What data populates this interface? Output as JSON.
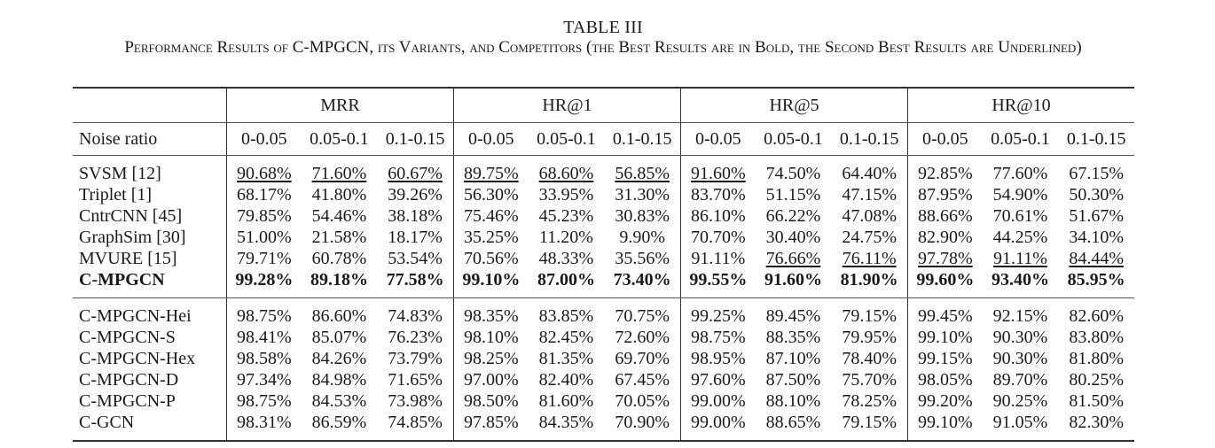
{
  "caption": {
    "label": "TABLE III",
    "title": "Performance Results of C-MPGCN, its Variants, and Competitors (the Best Results are in Bold, the Second Best Results are Underlined)"
  },
  "table": {
    "groups": [
      "MRR",
      "HR@1",
      "HR@5",
      "HR@10"
    ],
    "noise_header": "Noise ratio",
    "noise_ratios": [
      "0-0.05",
      "0.05-0.1",
      "0.1-0.15"
    ],
    "sections": [
      {
        "rows": [
          {
            "name": "SVSM [12]",
            "values": [
              "90.68%",
              "71.60%",
              "60.67%",
              "89.75%",
              "68.60%",
              "56.85%",
              "91.60%",
              "74.50%",
              "64.40%",
              "92.85%",
              "77.60%",
              "67.15%"
            ],
            "underline": [
              0,
              1,
              2,
              3,
              4,
              5,
              6
            ]
          },
          {
            "name": "Triplet [1]",
            "values": [
              "68.17%",
              "41.80%",
              "39.26%",
              "56.30%",
              "33.95%",
              "31.30%",
              "83.70%",
              "51.15%",
              "47.15%",
              "87.95%",
              "54.90%",
              "50.30%"
            ]
          },
          {
            "name": "CntrCNN [45]",
            "values": [
              "79.85%",
              "54.46%",
              "38.18%",
              "75.46%",
              "45.23%",
              "30.83%",
              "86.10%",
              "66.22%",
              "47.08%",
              "88.66%",
              "70.61%",
              "51.67%"
            ]
          },
          {
            "name": "GraphSim [30]",
            "values": [
              "51.00%",
              "21.58%",
              "18.17%",
              "35.25%",
              "11.20%",
              "9.90%",
              "70.70%",
              "30.40%",
              "24.75%",
              "82.90%",
              "44.25%",
              "34.10%"
            ]
          },
          {
            "name": "MVURE [15]",
            "values": [
              "79.71%",
              "60.78%",
              "53.54%",
              "70.56%",
              "48.33%",
              "35.56%",
              "91.11%",
              "76.66%",
              "76.11%",
              "97.78%",
              "91.11%",
              "84.44%"
            ],
            "underline": [
              7,
              8,
              9,
              10,
              11
            ]
          },
          {
            "name": "C-MPGCN",
            "values": [
              "99.28%",
              "89.18%",
              "77.58%",
              "99.10%",
              "87.00%",
              "73.40%",
              "99.55%",
              "91.60%",
              "81.90%",
              "99.60%",
              "93.40%",
              "85.95%"
            ],
            "bold": true
          }
        ]
      },
      {
        "rows": [
          {
            "name": "C-MPGCN-Hei",
            "values": [
              "98.75%",
              "86.60%",
              "74.83%",
              "98.35%",
              "83.85%",
              "70.75%",
              "99.25%",
              "89.45%",
              "79.15%",
              "99.45%",
              "92.15%",
              "82.60%"
            ]
          },
          {
            "name": "C-MPGCN-S",
            "values": [
              "98.41%",
              "85.07%",
              "76.23%",
              "98.10%",
              "82.45%",
              "72.60%",
              "98.75%",
              "88.35%",
              "79.95%",
              "99.10%",
              "90.30%",
              "83.80%"
            ]
          },
          {
            "name": "C-MPGCN-Hex",
            "values": [
              "98.58%",
              "84.26%",
              "73.79%",
              "98.25%",
              "81.35%",
              "69.70%",
              "98.95%",
              "87.10%",
              "78.40%",
              "99.15%",
              "90.30%",
              "81.80%"
            ]
          },
          {
            "name": "C-MPGCN-D",
            "values": [
              "97.34%",
              "84.98%",
              "71.65%",
              "97.00%",
              "82.40%",
              "67.45%",
              "97.60%",
              "87.50%",
              "75.70%",
              "98.05%",
              "89.70%",
              "80.25%"
            ]
          },
          {
            "name": "C-MPGCN-P",
            "values": [
              "98.75%",
              "84.53%",
              "73.98%",
              "98.50%",
              "81.60%",
              "70.05%",
              "99.00%",
              "88.10%",
              "78.25%",
              "99.20%",
              "90.25%",
              "81.50%"
            ]
          },
          {
            "name": "C-GCN",
            "values": [
              "98.31%",
              "86.59%",
              "74.85%",
              "97.85%",
              "84.35%",
              "70.90%",
              "99.00%",
              "88.65%",
              "79.15%",
              "99.10%",
              "91.05%",
              "82.30%"
            ]
          }
        ]
      }
    ]
  }
}
